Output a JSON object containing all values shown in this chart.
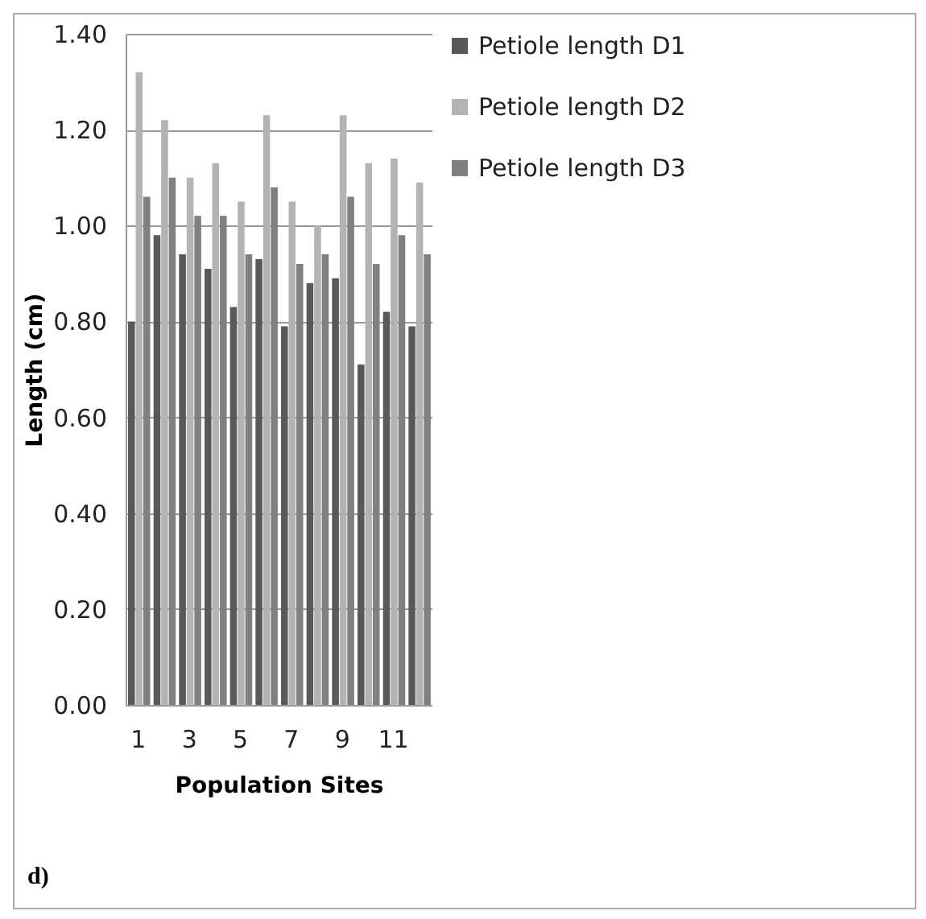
{
  "chart_data": {
    "type": "bar",
    "xlabel": "Population Sites",
    "ylabel": "Length (cm)",
    "categories": [
      "1",
      null,
      "3",
      null,
      "5",
      null,
      "7",
      null,
      "9",
      null,
      "11",
      null
    ],
    "series": [
      {
        "name": "Petiole length D1",
        "color": "#595959",
        "values": [
          0.8,
          0.98,
          0.94,
          0.91,
          0.83,
          0.93,
          0.79,
          0.88,
          0.89,
          0.71,
          0.82,
          0.79
        ]
      },
      {
        "name": "Petiole length D2",
        "color": "#b3b3b3",
        "values": [
          1.32,
          1.22,
          1.1,
          1.13,
          1.05,
          1.23,
          1.05,
          1.0,
          1.23,
          1.13,
          1.14,
          1.09
        ]
      },
      {
        "name": "Petiole length D3",
        "color": "#808080",
        "values": [
          1.06,
          1.1,
          1.02,
          1.02,
          0.94,
          1.08,
          0.92,
          0.94,
          1.06,
          0.92,
          0.98,
          0.94
        ]
      }
    ],
    "ylim": [
      0,
      1.4
    ],
    "yticks": [
      {
        "value": 0,
        "label": "0.00"
      },
      {
        "value": 0.2,
        "label": "0.20"
      },
      {
        "value": 0.4,
        "label": "0.40"
      },
      {
        "value": 0.6,
        "label": "0.60"
      },
      {
        "value": 0.8,
        "label": "0.80"
      },
      {
        "value": 1.0,
        "label": "1.00"
      },
      {
        "value": 1.2,
        "label": "1.20"
      },
      {
        "value": 1.4,
        "label": "1.40"
      }
    ],
    "grid": "y",
    "legend": "right",
    "annotations": [
      "d)"
    ]
  }
}
